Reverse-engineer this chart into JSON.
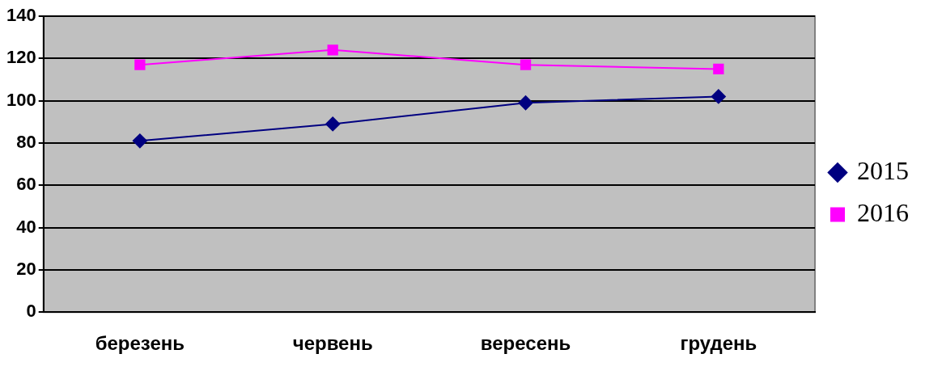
{
  "chart_data": {
    "type": "line",
    "categories": [
      "березень",
      "червень",
      "вересень",
      "грудень"
    ],
    "series": [
      {
        "name": "2015",
        "color": "#000080",
        "marker": "diamond",
        "values": [
          81,
          89,
          99,
          102
        ]
      },
      {
        "name": "2016",
        "color": "#ff00ff",
        "marker": "square",
        "values": [
          117,
          124,
          117,
          115
        ]
      }
    ],
    "ylim": [
      0,
      140
    ],
    "yticks": [
      0,
      20,
      40,
      60,
      80,
      100,
      120,
      140
    ],
    "grid": "y",
    "legend": "right"
  }
}
